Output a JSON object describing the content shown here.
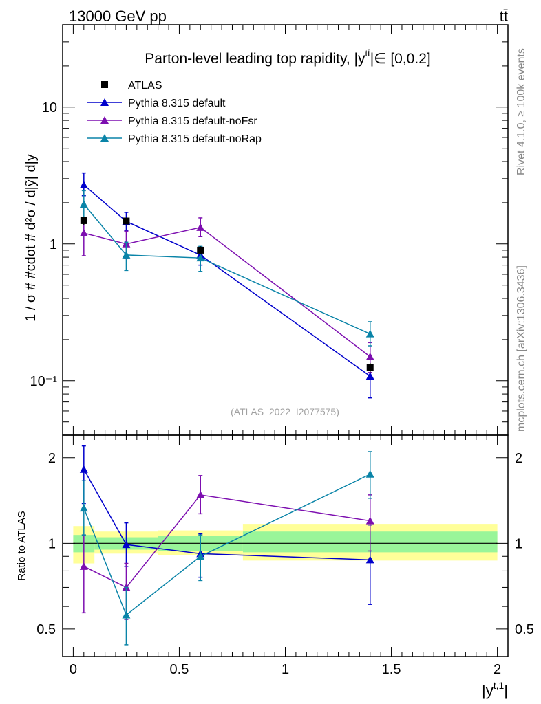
{
  "header": {
    "energy_label": "13000 GeV pp",
    "process_label": "tt̄"
  },
  "side_labels": {
    "rivet": "Rivet 4.1.0, ≥ 100k events",
    "mcplots": "mcplots.cern.ch [arXiv:1306.3436]"
  },
  "watermark": "(ATLAS_2022_I2077575)",
  "colors": {
    "atlas": "#000000",
    "pythia_default": "#0000cc",
    "pythia_nofsr": "#7d0fb0",
    "pythia_norap": "#0a84a8",
    "band_inner": "#99f599",
    "band_outer": "#ffff99"
  },
  "chart_data": [
    {
      "type": "scatter",
      "role": "main",
      "title": "Parton-level leading top rapidity, |ỹ̄|∈ [0,0.2]",
      "title_parts": {
        "pre": "Parton-level leading top rapidity, |y",
        "sup": "tt̄",
        "post": "|∈ [0,0.2]"
      },
      "xlabel": "|y^{t,1}|",
      "ylabel": "1 / σ # #cdot # d²σ / d|y^{tt̄}| d|y^{t,1}|",
      "ylabel_text": "1 / σ # #cdot # d²σ / d|ỹ| d|y",
      "yscale": "log",
      "xlim": [
        -0.05,
        2.05
      ],
      "ylim": [
        0.04,
        40
      ],
      "y_tick_labels": [
        "10⁻¹",
        "1",
        "10"
      ],
      "legend_position": "top-left",
      "series": [
        {
          "name": "ATLAS",
          "marker": "square",
          "points": [
            {
              "x": 0.05,
              "y": 1.48,
              "err": 0.1
            },
            {
              "x": 0.25,
              "y": 1.47,
              "err": 0.08
            },
            {
              "x": 0.6,
              "y": 0.9,
              "err": 0.06
            },
            {
              "x": 1.4,
              "y": 0.125,
              "err": 0.01
            }
          ]
        },
        {
          "name": "Pythia 8.315 default",
          "marker": "triangle",
          "points": [
            {
              "x": 0.05,
              "y": 2.7,
              "lo": 2.25,
              "hi": 3.3
            },
            {
              "x": 0.25,
              "y": 1.46,
              "lo": 1.25,
              "hi": 1.7
            },
            {
              "x": 0.6,
              "y": 0.83,
              "lo": 0.7,
              "hi": 0.95
            },
            {
              "x": 1.4,
              "y": 0.108,
              "lo": 0.075,
              "hi": 0.145
            }
          ]
        },
        {
          "name": "Pythia 8.315 default-noFsr",
          "marker": "triangle",
          "points": [
            {
              "x": 0.05,
              "y": 1.2,
              "lo": 0.82,
              "hi": 1.55
            },
            {
              "x": 0.25,
              "y": 1.0,
              "lo": 0.78,
              "hi": 1.24
            },
            {
              "x": 0.6,
              "y": 1.32,
              "lo": 1.13,
              "hi": 1.55
            },
            {
              "x": 1.4,
              "y": 0.15,
              "lo": 0.115,
              "hi": 0.19
            }
          ]
        },
        {
          "name": "Pythia 8.315 default-noRap",
          "marker": "triangle",
          "points": [
            {
              "x": 0.05,
              "y": 1.95,
              "lo": 1.55,
              "hi": 2.45
            },
            {
              "x": 0.25,
              "y": 0.83,
              "lo": 0.64,
              "hi": 1.03
            },
            {
              "x": 0.6,
              "y": 0.79,
              "lo": 0.63,
              "hi": 0.96
            },
            {
              "x": 1.4,
              "y": 0.22,
              "lo": 0.18,
              "hi": 0.27
            }
          ]
        }
      ]
    },
    {
      "type": "scatter",
      "role": "ratio",
      "xlabel": "|y^{t,1}|",
      "ylabel": "Ratio to ATLAS",
      "yscale": "log",
      "xlim": [
        -0.05,
        2.05
      ],
      "ylim": [
        0.4,
        2.4
      ],
      "x_ticks": [
        0,
        0.5,
        1,
        1.5,
        2
      ],
      "x_tick_labels": [
        "0",
        "0.5",
        "1",
        "1.5",
        "2"
      ],
      "y_ticks": [
        0.5,
        1,
        2
      ],
      "y_tick_labels": [
        "0.5",
        "1",
        "2"
      ],
      "bands": [
        {
          "x0": 0.0,
          "x1": 0.1,
          "inner": [
            0.93,
            1.07
          ],
          "outer": [
            0.85,
            1.15
          ]
        },
        {
          "x0": 0.1,
          "x1": 0.4,
          "inner": [
            0.95,
            1.05
          ],
          "outer": [
            0.92,
            1.1
          ]
        },
        {
          "x0": 0.4,
          "x1": 0.8,
          "inner": [
            0.94,
            1.06
          ],
          "outer": [
            0.91,
            1.11
          ]
        },
        {
          "x0": 0.8,
          "x1": 2.0,
          "inner": [
            0.93,
            1.1
          ],
          "outer": [
            0.87,
            1.17
          ]
        }
      ],
      "series": [
        {
          "name": "Pythia 8.315 default",
          "points": [
            {
              "x": 0.05,
              "y": 1.82,
              "lo": 1.38,
              "hi": 2.2
            },
            {
              "x": 0.25,
              "y": 0.99,
              "lo": 0.83,
              "hi": 1.18
            },
            {
              "x": 0.6,
              "y": 0.92,
              "lo": 0.76,
              "hi": 1.08
            },
            {
              "x": 1.4,
              "y": 0.875,
              "lo": 0.61,
              "hi": 1.16
            }
          ]
        },
        {
          "name": "Pythia 8.315 default-noFsr",
          "points": [
            {
              "x": 0.05,
              "y": 0.83,
              "lo": 0.57,
              "hi": 1.07
            },
            {
              "x": 0.25,
              "y": 0.7,
              "lo": 0.54,
              "hi": 0.85
            },
            {
              "x": 0.6,
              "y": 1.48,
              "lo": 1.27,
              "hi": 1.73
            },
            {
              "x": 1.4,
              "y": 1.2,
              "lo": 0.94,
              "hi": 1.48
            }
          ]
        },
        {
          "name": "Pythia 8.315 default-noRap",
          "points": [
            {
              "x": 0.05,
              "y": 1.33,
              "lo": 1.07,
              "hi": 1.66
            },
            {
              "x": 0.25,
              "y": 0.56,
              "lo": 0.44,
              "hi": 0.7
            },
            {
              "x": 0.6,
              "y": 0.9,
              "lo": 0.74,
              "hi": 1.07
            },
            {
              "x": 1.4,
              "y": 1.75,
              "lo": 1.44,
              "hi": 2.1
            }
          ]
        }
      ]
    }
  ]
}
